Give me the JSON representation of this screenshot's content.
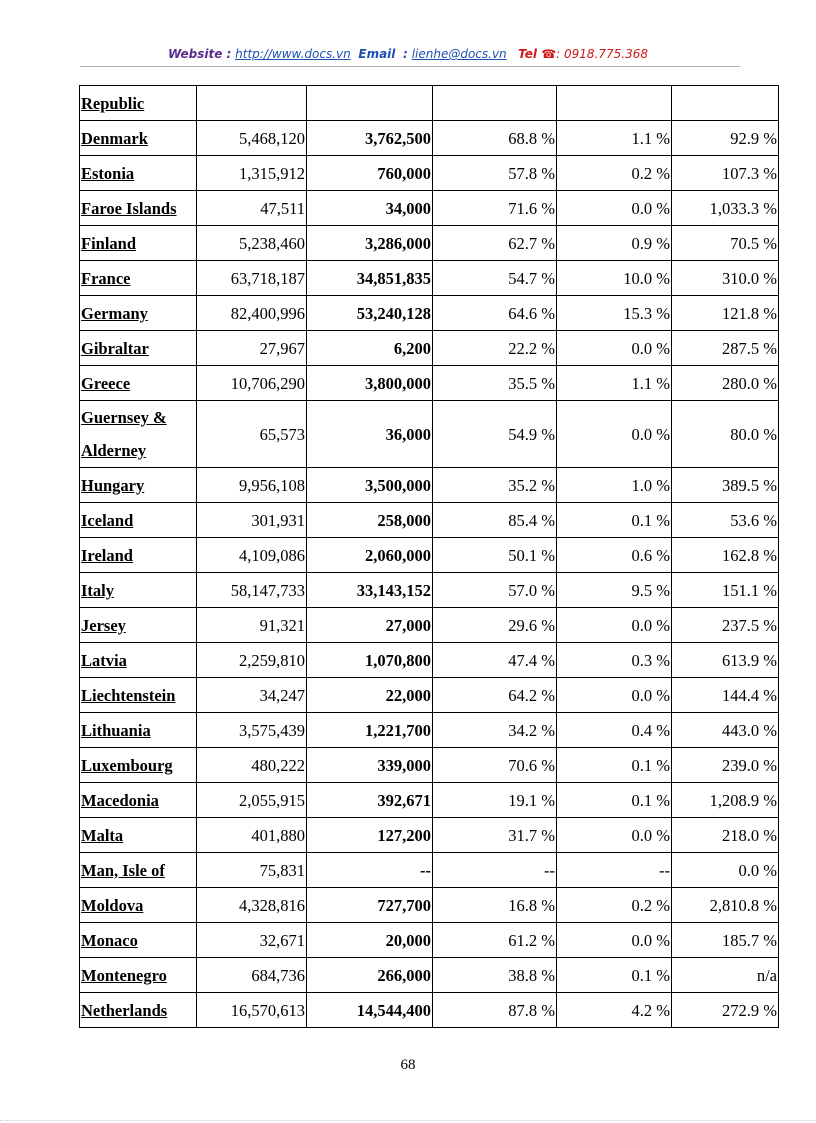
{
  "header": {
    "website_label": "Website :",
    "website": "http://www.docs.vn",
    "email_label": "Email",
    "email_sep": ":",
    "email": "lienhe@docs.vn",
    "tel_label": "Tel ☎",
    "tel": ": 0918.775.368"
  },
  "table": {
    "rows": [
      [
        "Republic"
      ],
      [
        "Denmark",
        "5,468,120",
        "3,762,500",
        "68.8 %",
        "1.1 %",
        "92.9 %"
      ],
      [
        "Estonia",
        "1,315,912",
        "760,000",
        "57.8 %",
        "0.2 %",
        "107.3 %"
      ],
      [
        "Faroe Islands",
        "47,511",
        "34,000",
        "71.6 %",
        "0.0 %",
        "1,033.3 %"
      ],
      [
        "Finland",
        "5,238,460",
        "3,286,000",
        "62.7 %",
        "0.9 %",
        "70.5 %"
      ],
      [
        "France",
        "63,718,187",
        "34,851,835",
        "54.7 %",
        "10.0 %",
        "310.0 %"
      ],
      [
        "Germany",
        "82,400,996",
        "53,240,128",
        "64.6 %",
        "15.3 %",
        "121.8 %"
      ],
      [
        "Gibraltar",
        "27,967",
        "6,200",
        "22.2 %",
        "0.0 %",
        "287.5 %"
      ],
      [
        "Greece",
        "10,706,290",
        "3,800,000",
        "35.5 %",
        "1.1 %",
        "280.0 %"
      ],
      [
        "Guernsey & Alderney",
        "65,573",
        "36,000",
        "54.9 %",
        "0.0 %",
        "80.0 %"
      ],
      [
        "Hungary",
        "9,956,108",
        "3,500,000",
        "35.2 %",
        "1.0 %",
        "389.5 %"
      ],
      [
        "Iceland",
        "301,931",
        "258,000",
        "85.4 %",
        "0.1 %",
        "53.6 %"
      ],
      [
        "Ireland",
        "4,109,086",
        "2,060,000",
        "50.1 %",
        "0.6 %",
        "162.8 %"
      ],
      [
        "Italy",
        "58,147,733",
        "33,143,152",
        "57.0 %",
        "9.5 %",
        "151.1 %"
      ],
      [
        "Jersey",
        "91,321",
        "27,000",
        "29.6 %",
        "0.0 %",
        "237.5 %"
      ],
      [
        "Latvia",
        "2,259,810",
        "1,070,800",
        "47.4 %",
        "0.3 %",
        "613.9 %"
      ],
      [
        "Liechtenstein",
        "34,247",
        "22,000",
        "64.2 %",
        "0.0 %",
        "144.4 %"
      ],
      [
        "Lithuania",
        "3,575,439",
        "1,221,700",
        "34.2 %",
        "0.4 %",
        "443.0 %"
      ],
      [
        "Luxembourg",
        "480,222",
        "339,000",
        "70.6 %",
        "0.1 %",
        "239.0 %"
      ],
      [
        "Macedonia",
        "2,055,915",
        "392,671",
        "19.1 %",
        "0.1 %",
        "1,208.9 %"
      ],
      [
        "Malta",
        "401,880",
        "127,200",
        "31.7 %",
        "0.0 %",
        "218.0 %"
      ],
      [
        "Man, Isle of",
        "75,831",
        "--",
        "--",
        "--",
        "0.0 %"
      ],
      [
        "Moldova",
        "4,328,816",
        "727,700",
        "16.8 %",
        "0.2 %",
        "2,810.8 %"
      ],
      [
        "Monaco",
        "32,671",
        "20,000",
        "61.2 %",
        "0.0 %",
        "185.7 %"
      ],
      [
        "Montenegro",
        "684,736",
        "266,000",
        "38.8 %",
        "0.1 %",
        "n/a"
      ],
      [
        "Netherlands",
        "16,570,613",
        "14,544,400",
        "87.8 %",
        "4.2 %",
        "272.9 %"
      ]
    ]
  },
  "footer": {
    "page": "68"
  }
}
